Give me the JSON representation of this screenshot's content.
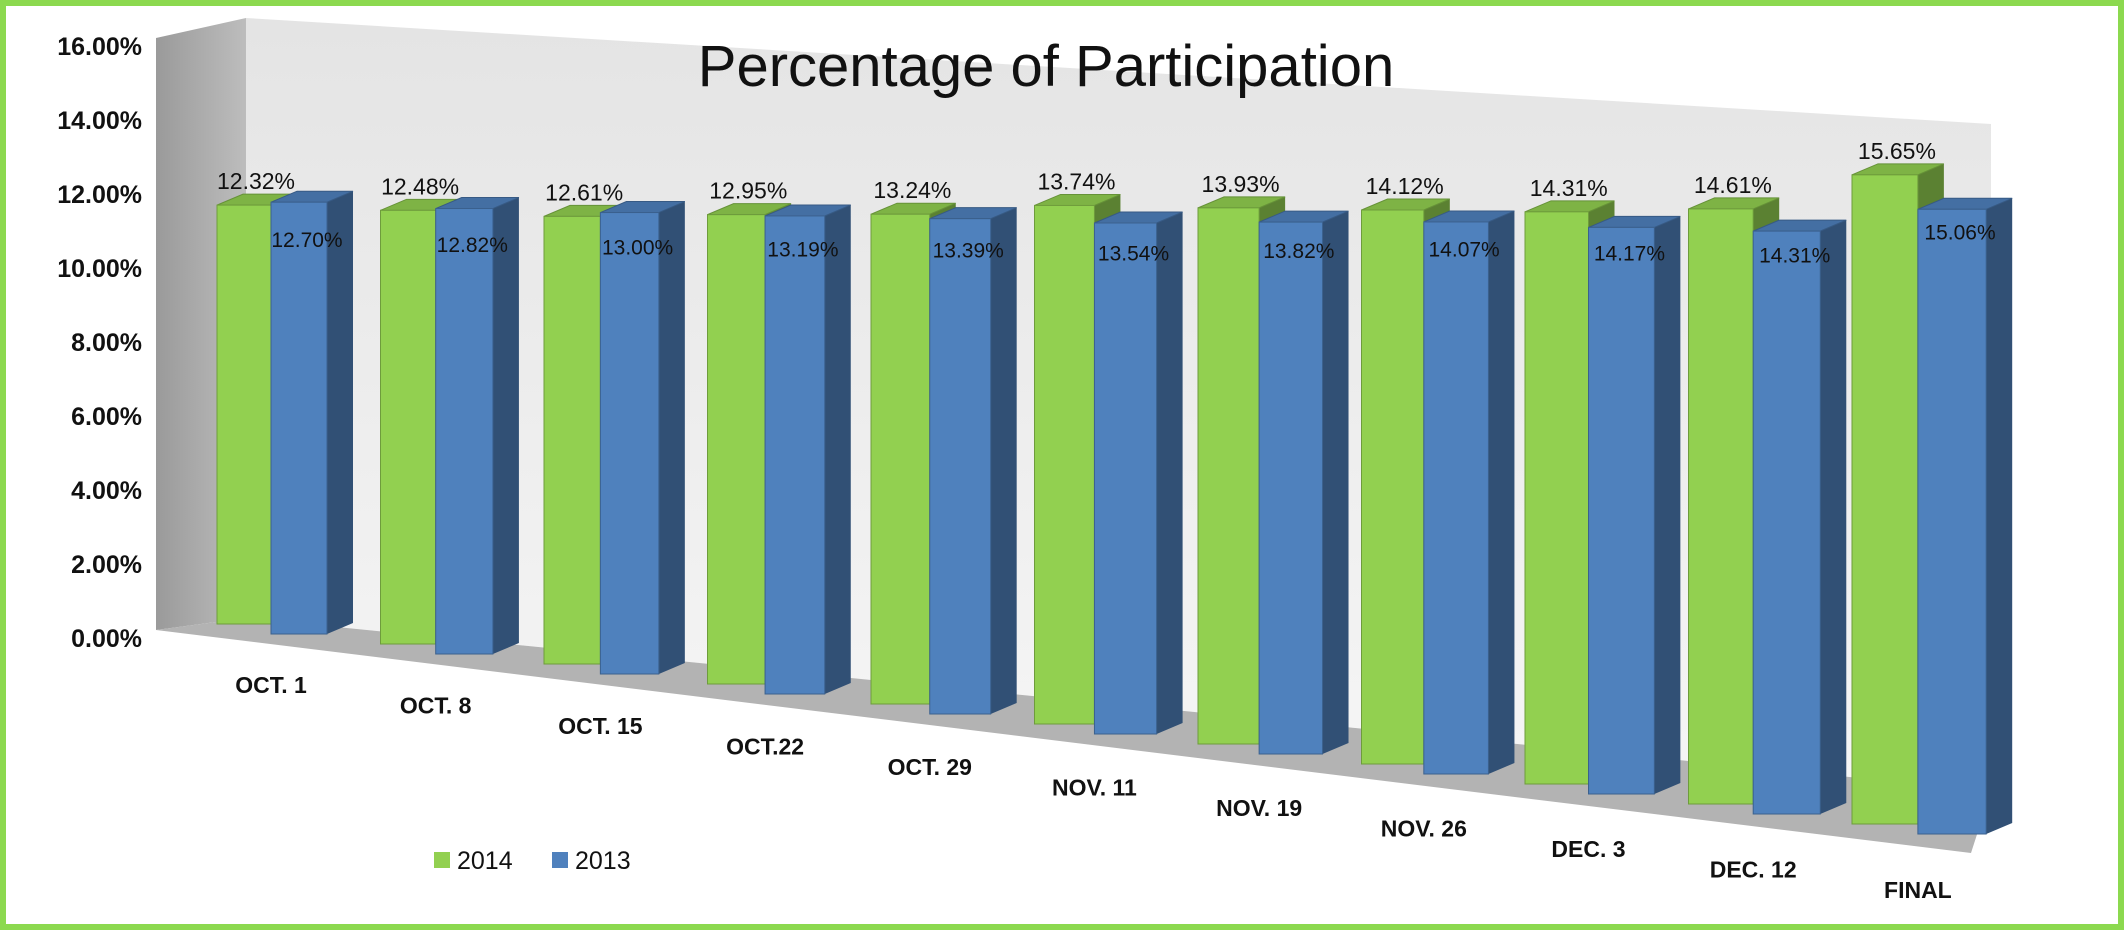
{
  "chart_data": {
    "type": "bar",
    "title": "Percentage of Participation",
    "xlabel": "",
    "ylabel": "",
    "ylim": [
      0,
      16
    ],
    "y_ticks": [
      "0.00%",
      "2.00%",
      "4.00%",
      "6.00%",
      "8.00%",
      "10.00%",
      "12.00%",
      "14.00%",
      "16.00%"
    ],
    "categories": [
      "OCT. 1",
      "OCT. 8",
      "OCT. 15",
      "OCT.22",
      "OCT. 29",
      "NOV. 11",
      "NOV. 19",
      "NOV. 26",
      "DEC. 3",
      "DEC. 12",
      "FINAL"
    ],
    "series": [
      {
        "name": "2014",
        "color": "#92d050",
        "values": [
          12.32,
          12.48,
          12.61,
          12.95,
          13.24,
          13.74,
          13.93,
          14.12,
          14.31,
          14.61,
          15.65
        ],
        "labels": [
          "12.32%",
          "12.48%",
          "12.61%",
          "12.95%",
          "13.24%",
          "13.74%",
          "13.93%",
          "14.12%",
          "14.31%",
          "14.61%",
          "15.65%"
        ]
      },
      {
        "name": "2013",
        "color": "#4f81bd",
        "values": [
          12.7,
          12.82,
          13.0,
          13.19,
          13.39,
          13.54,
          13.82,
          14.07,
          14.17,
          14.31,
          15.06
        ],
        "labels": [
          "12.70%",
          "12.82%",
          "13.00%",
          "13.19%",
          "13.39%",
          "13.54%",
          "13.82%",
          "14.07%",
          "14.17%",
          "14.31%",
          "15.06%"
        ]
      }
    ],
    "legend": "bottom-left",
    "grid": false,
    "style": "3d-clustered-column"
  }
}
